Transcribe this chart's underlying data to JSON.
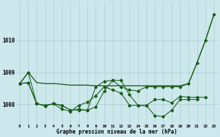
{
  "title": "Graphe pression niveau de la mer (hPa)",
  "bg_color": "#cce8ec",
  "grid_color": "#aacccc",
  "line_color": "#1a5c1a",
  "x_labels": [
    "0",
    "1",
    "2",
    "3",
    "4",
    "5",
    "6",
    "7",
    "8",
    "9",
    "10",
    "11",
    "12",
    "13",
    "14",
    "15",
    "16",
    "17",
    "18",
    "19",
    "20",
    "21",
    "22",
    "23"
  ],
  "ylim": [
    1007.4,
    1011.2
  ],
  "yticks": [
    1008,
    1009,
    1010
  ],
  "series": [
    {
      "data": [
        1008.65,
        1009.0,
        1008.68,
        1008.65,
        1008.65,
        1008.63,
        1008.6,
        1008.6,
        1008.6,
        1008.58,
        1008.58,
        1008.58,
        1008.58,
        1008.58,
        1008.58,
        1008.58,
        1008.58,
        1008.58,
        1008.58,
        1008.58,
        1008.65,
        1009.3,
        1010.0,
        1010.8
      ],
      "marker": false,
      "linewidth": 1.0
    },
    {
      "data": [
        1008.65,
        1008.68,
        1008.02,
        1007.97,
        1008.02,
        1007.97,
        1007.82,
        1007.82,
        1007.82,
        1008.55,
        1008.72,
        1008.75,
        1008.55,
        1008.45,
        1008.42,
        1008.55,
        1008.55,
        1008.55,
        1008.55,
        1008.55,
        1008.65,
        1009.3,
        1010.0,
        1010.8
      ],
      "marker": true,
      "linewidth": 0.8
    },
    {
      "data": [
        1008.65,
        1008.68,
        1008.02,
        1007.95,
        1008.02,
        1007.97,
        1007.82,
        1007.85,
        1007.82,
        1007.92,
        1008.42,
        1008.75,
        1008.75,
        1008.3,
        1007.97,
        1007.97,
        1008.15,
        1008.15,
        1008.05,
        1008.25,
        1008.22,
        1008.22,
        1008.22,
        null
      ],
      "marker": true,
      "linewidth": 0.8
    },
    {
      "data": [
        1008.65,
        1009.0,
        1008.02,
        1007.97,
        1008.02,
        1007.85,
        1007.78,
        1007.97,
        1008.07,
        1008.27,
        1008.55,
        1008.45,
        1008.35,
        1007.97,
        1007.97,
        1007.97,
        1007.65,
        1007.62,
        1007.82,
        1008.15,
        1008.15,
        1008.15,
        null,
        null
      ],
      "marker": true,
      "linewidth": 0.8
    }
  ]
}
